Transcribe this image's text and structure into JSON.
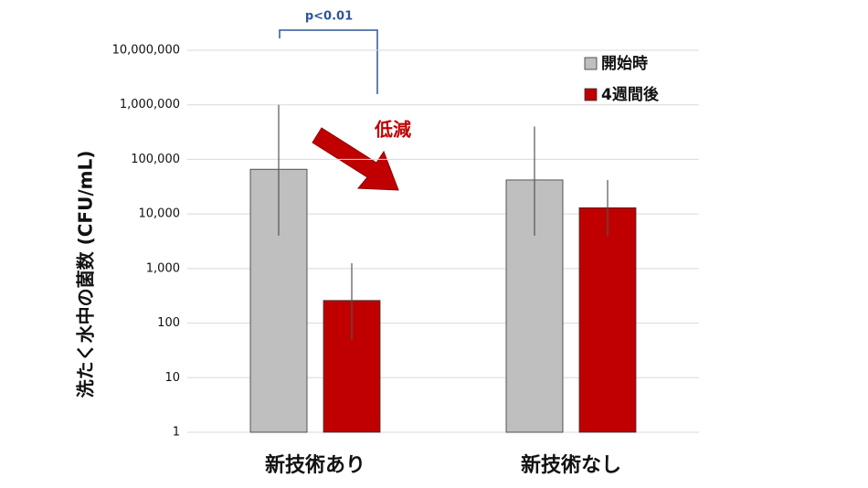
{
  "chart_data": {
    "type": "bar",
    "y_label": "洗たく水中の菌数 (CFU/mL)",
    "categories": [
      "新技術あり",
      "新技術なし"
    ],
    "series": [
      {
        "name": "開始時",
        "color": "#bfbfbf",
        "values": [
          66000,
          42000
        ],
        "lower": [
          4000,
          4000
        ],
        "upper": [
          1000000,
          400000
        ]
      },
      {
        "name": "4週間後",
        "color": "#c00000",
        "values": [
          260,
          13000
        ],
        "lower": [
          50,
          4000
        ],
        "upper": [
          1250,
          42000
        ]
      }
    ],
    "log_scale": true,
    "ylim": [
      1,
      10000000
    ],
    "yticks": [
      1,
      10,
      100,
      {
        "value": 1000,
        "label": "1,000"
      },
      {
        "value": 10000,
        "label": "10,000"
      },
      {
        "value": 100000,
        "label": "100,000"
      },
      {
        "value": 1000000,
        "label": "1,000,000"
      },
      {
        "value": 10000000,
        "label": "10,000,000"
      }
    ],
    "grid": true,
    "legend": "top-right",
    "annotations": [
      "p<0.01",
      "低減"
    ]
  }
}
